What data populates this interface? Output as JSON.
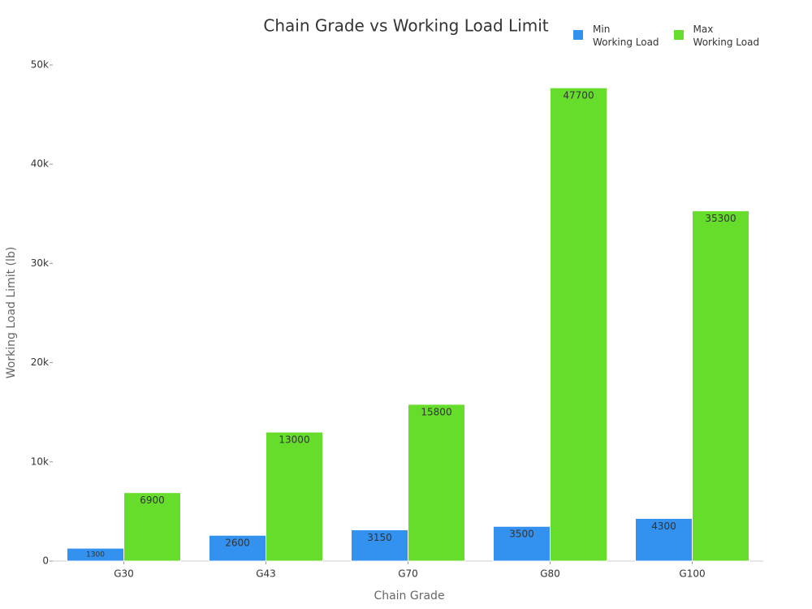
{
  "chart_data": {
    "type": "bar",
    "title": "Chain Grade vs Working Load Limit",
    "x_label": "Chain Grade",
    "y_label": "Working Load Limit (lb)",
    "categories": [
      "G30",
      "G43",
      "G70",
      "G80",
      "G100"
    ],
    "series": [
      {
        "name": "Min\nWorking Load",
        "color": "#3391f0",
        "values": [
          1300,
          2600,
          3150,
          3500,
          4300
        ]
      },
      {
        "name": "Max\nWorking Load",
        "color": "#66dd2a",
        "values": [
          6900,
          13000,
          15800,
          47700,
          35300
        ]
      }
    ],
    "ylim": [
      0,
      50000
    ],
    "yticks": [
      0,
      {
        "value": 10000,
        "label": "10k"
      },
      {
        "value": 20000,
        "label": "20k"
      },
      {
        "value": 30000,
        "label": "30k"
      },
      {
        "value": 40000,
        "label": "40k"
      },
      {
        "value": 50000,
        "label": "50k"
      }
    ],
    "legend": "top-right"
  }
}
